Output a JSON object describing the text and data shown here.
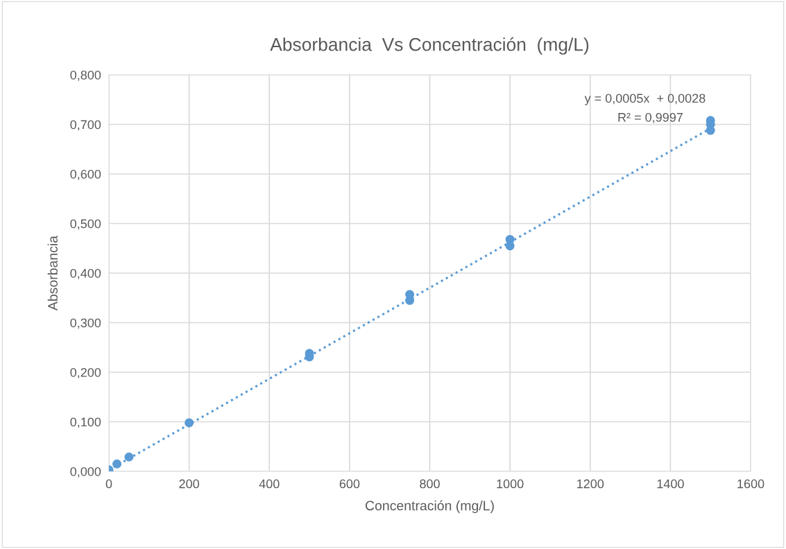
{
  "chart_data": {
    "type": "scatter",
    "title": "Absorbancia  Vs Concentración  (mg/L)",
    "xlabel": "Concentración (mg/L)",
    "ylabel": "Absorbancia",
    "series": [
      {
        "color": "#5b9bd5",
        "marker": "circle",
        "x": [
          0,
          20,
          50,
          200,
          500,
          500,
          750,
          750,
          1000,
          1000,
          1500,
          1500,
          1500
        ],
        "values": [
          0.003,
          0.015,
          0.029,
          0.098,
          0.238,
          0.231,
          0.357,
          0.345,
          0.468,
          0.455,
          0.708,
          0.7,
          0.688
        ]
      },
      {
        "type": "line",
        "color": "#5b9bd5",
        "line_style": "dotted",
        "marker": "none",
        "x": [
          0,
          1500
        ],
        "values": [
          0.003,
          0.692
        ]
      }
    ],
    "annotations": [
      "y = 0,0005x  + 0,0028",
      "R² = 0,9997"
    ],
    "xlim": [
      0,
      1600
    ],
    "xticks": [
      0,
      200,
      400,
      600,
      800,
      1000,
      1200,
      1400,
      1600
    ],
    "ylim": [
      0,
      0.8
    ],
    "yticks": [
      {
        "value": 0,
        "label": "0,000"
      },
      {
        "value": 0.1,
        "label": "0,100"
      },
      {
        "value": 0.2,
        "label": "0,200"
      },
      {
        "value": 0.3,
        "label": "0,300"
      },
      {
        "value": 0.4,
        "label": "0,400"
      },
      {
        "value": 0.5,
        "label": "0,500"
      },
      {
        "value": 0.6,
        "label": "0,600"
      },
      {
        "value": 0.7,
        "label": "0,700"
      },
      {
        "value": 0.8,
        "label": "0,800"
      }
    ],
    "grid": true,
    "legend": false
  }
}
